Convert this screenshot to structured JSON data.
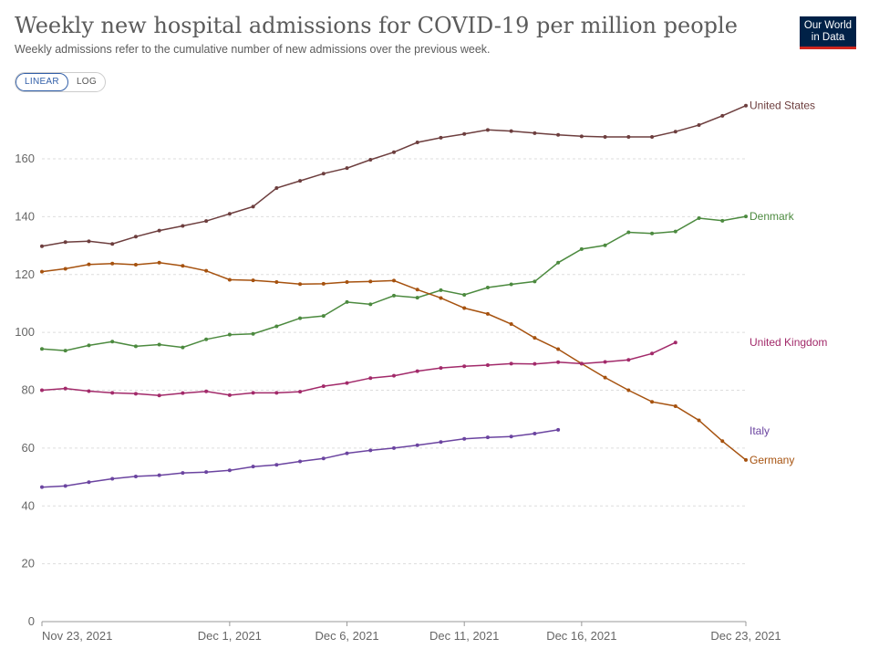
{
  "header": {
    "title": "Weekly new hospital admissions for COVID-19 per million people",
    "subtitle": "Weekly admissions refer to the cumulative number of new admissions over the previous week.",
    "logo_line1": "Our World",
    "logo_line2": "in Data"
  },
  "controls": {
    "linear_label": "LINEAR",
    "log_label": "LOG",
    "active": "LINEAR"
  },
  "chart_data": {
    "type": "line",
    "y_ticks": [
      0,
      20,
      40,
      60,
      80,
      100,
      120,
      140,
      160
    ],
    "ylim": [
      0,
      178
    ],
    "x_start": "2021-11-23",
    "x_end": "2021-12-23",
    "x_ticks": [
      {
        "date": "2021-11-23",
        "label": "Nov 23, 2021"
      },
      {
        "date": "2021-12-01",
        "label": "Dec 1, 2021"
      },
      {
        "date": "2021-12-06",
        "label": "Dec 6, 2021"
      },
      {
        "date": "2021-12-11",
        "label": "Dec 11, 2021"
      },
      {
        "date": "2021-12-16",
        "label": "Dec 16, 2021"
      },
      {
        "date": "2021-12-23",
        "label": "Dec 23, 2021"
      }
    ],
    "grid": "horizontal dashed",
    "colors": {
      "United States": "#6d3e3e",
      "Denmark": "#4c8a3f",
      "United Kingdom": "#a22a6a",
      "Italy": "#6b44a0",
      "Germany": "#a6520f",
      "grid": "#dddddd",
      "axis": "#999999"
    },
    "series": [
      {
        "name": "United States",
        "start": "2021-11-23",
        "values": [
          129.8,
          131.2,
          131.5,
          130.6,
          133.1,
          135.2,
          136.8,
          138.5,
          141.0,
          143.5,
          149.9,
          152.4,
          154.9,
          156.8,
          159.7,
          162.3,
          165.7,
          167.3,
          168.6,
          170.0,
          169.6,
          168.9,
          168.3,
          167.8,
          167.6,
          167.6,
          167.6,
          169.4,
          171.7,
          174.9,
          178.4
        ]
      },
      {
        "name": "Denmark",
        "start": "2021-11-23",
        "values": [
          94.3,
          93.7,
          95.5,
          96.8,
          95.2,
          95.8,
          94.8,
          97.6,
          99.2,
          99.5,
          102.1,
          104.9,
          105.7,
          110.5,
          109.7,
          112.7,
          112.0,
          114.6,
          113.0,
          115.5,
          116.6,
          117.6,
          124.1,
          128.8,
          130.1,
          134.6,
          134.2,
          134.9,
          139.5,
          138.6,
          140.1
        ]
      },
      {
        "name": "Germany",
        "start": "2021-11-23",
        "values": [
          121.0,
          122.0,
          123.5,
          123.8,
          123.4,
          124.1,
          123.0,
          121.3,
          118.2,
          118.0,
          117.4,
          116.7,
          116.8,
          117.4,
          117.6,
          117.9,
          114.8,
          111.9,
          108.4,
          106.4,
          102.9,
          98.1,
          94.2,
          89.2,
          84.4,
          80.0,
          76.0,
          74.5,
          69.6,
          62.4,
          55.9
        ]
      },
      {
        "name": "United Kingdom",
        "start": "2021-11-23",
        "values": [
          80.0,
          80.6,
          79.7,
          79.1,
          78.8,
          78.2,
          79.0,
          79.6,
          78.3,
          79.1,
          79.1,
          79.5,
          81.4,
          82.5,
          84.2,
          85.0,
          86.6,
          87.7,
          88.3,
          88.7,
          89.2,
          89.1,
          89.7,
          89.2,
          89.8,
          90.5,
          92.7,
          96.5
        ]
      },
      {
        "name": "Italy",
        "start": "2021-11-23",
        "values": [
          46.5,
          46.9,
          48.2,
          49.4,
          50.2,
          50.6,
          51.4,
          51.7,
          52.3,
          53.6,
          54.2,
          55.4,
          56.4,
          58.2,
          59.2,
          60.0,
          61.0,
          62.1,
          63.2,
          63.7,
          64.0,
          65.0,
          66.3
        ]
      }
    ],
    "series_labels": [
      "United States",
      "Denmark",
      "United Kingdom",
      "Italy",
      "Germany"
    ]
  }
}
